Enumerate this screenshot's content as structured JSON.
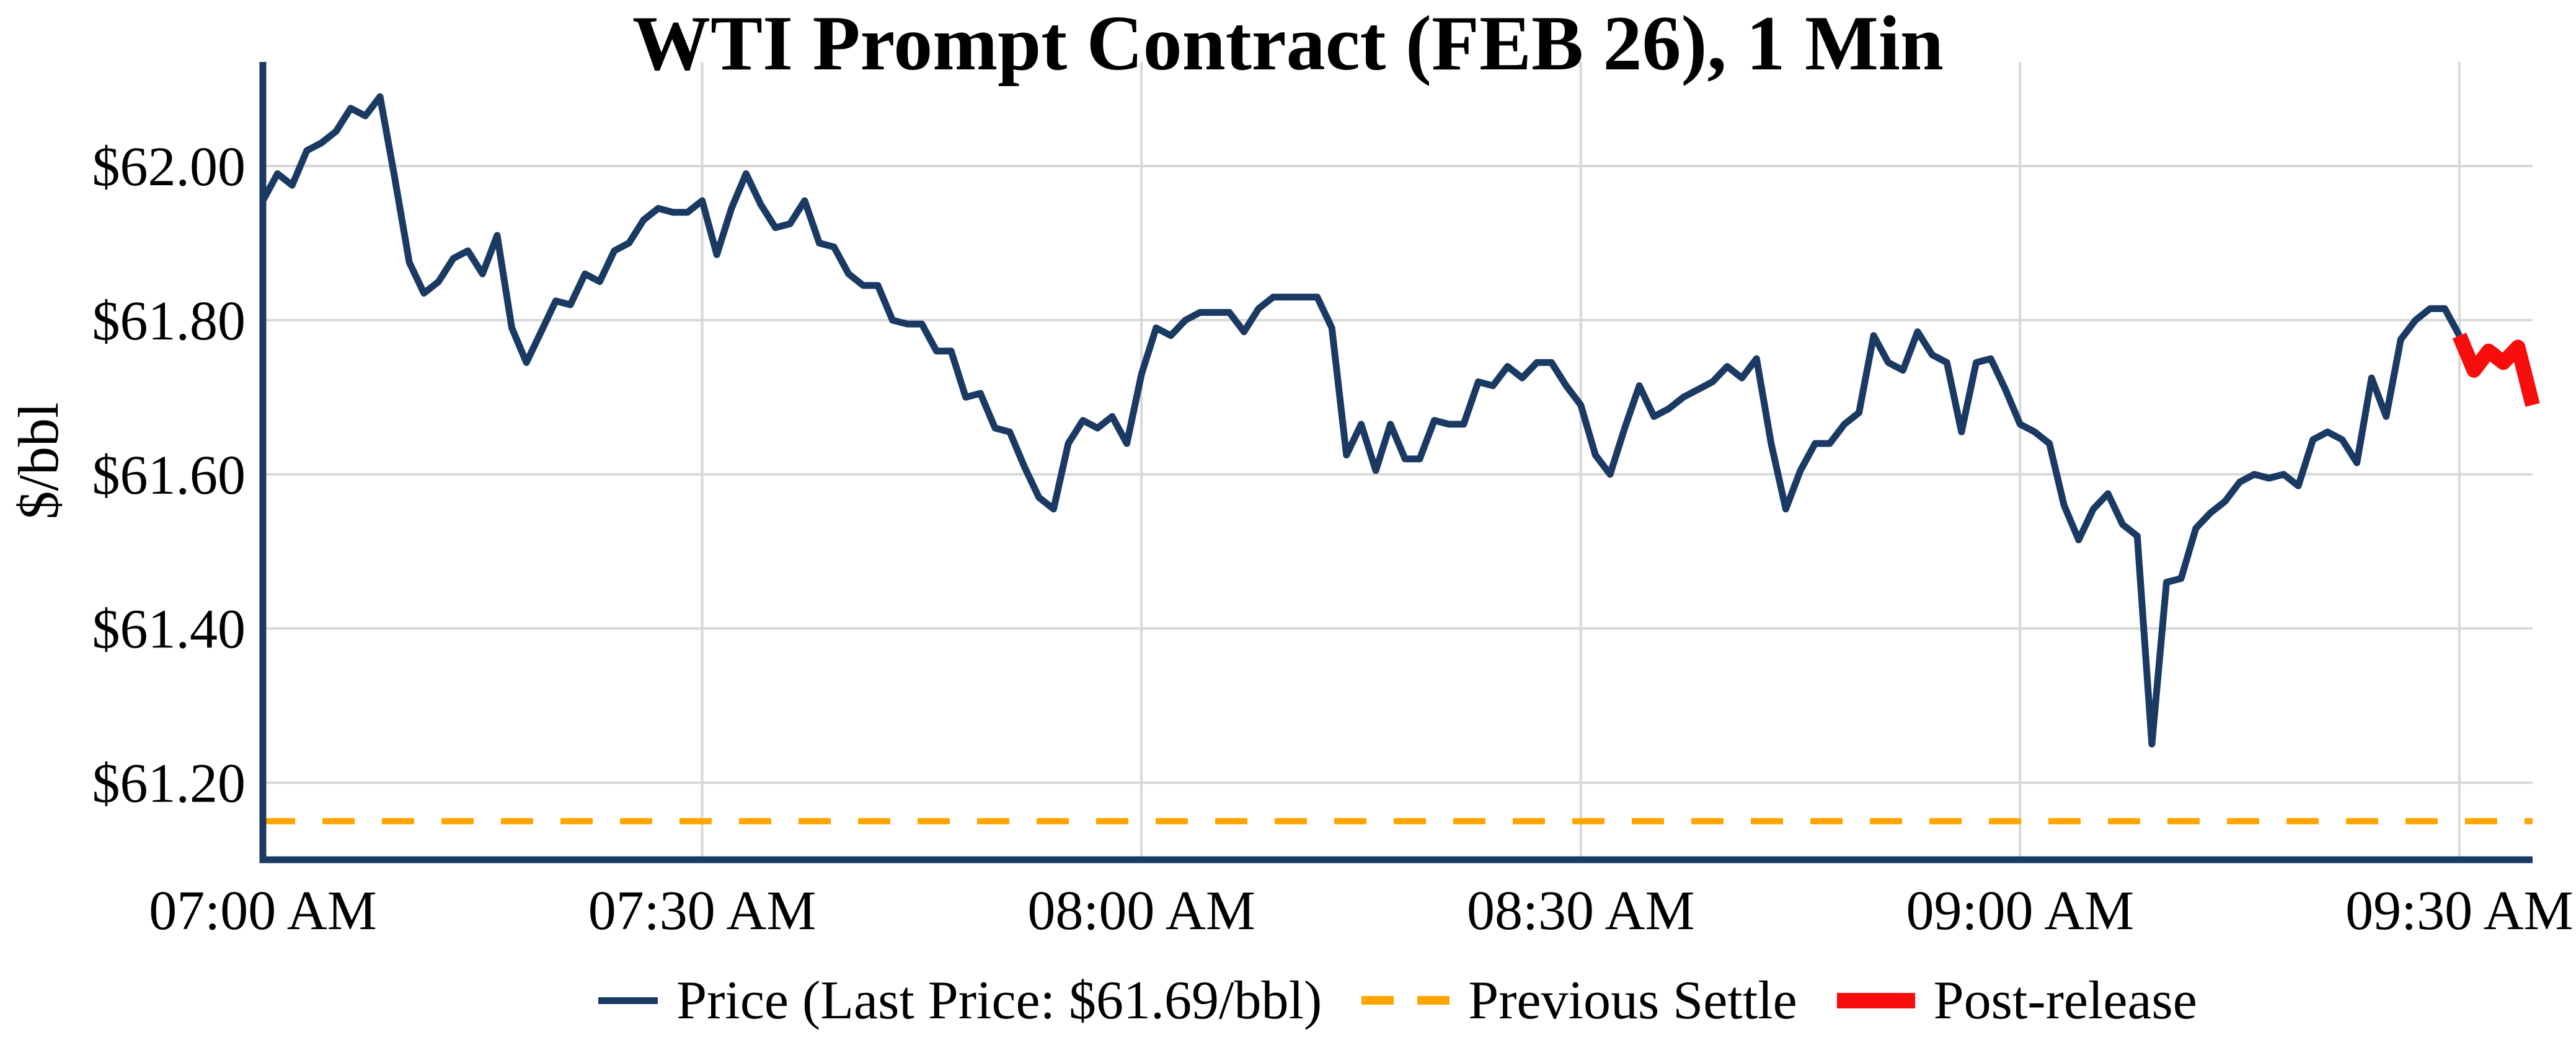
{
  "title": "WTI Prompt Contract (FEB 26), 1 Min",
  "y_axis_label": "$/bbl",
  "last_price_label": "$61.69/bbl",
  "colors": {
    "price_line": "#1a3a64",
    "previous_settle_line": "#ffa500",
    "post_release_line": "#f80d0d",
    "gridline": "#d8d8d8",
    "axis_spine": "#1a3a64",
    "text": "#000000",
    "background": "#ffffff"
  },
  "legend": {
    "items": [
      {
        "name": "price",
        "label": "Price (Last Price: $61.69/bbl)",
        "swatch": "solid-line"
      },
      {
        "name": "previous-settle",
        "label": "Previous Settle",
        "swatch": "dashed-line"
      },
      {
        "name": "post-release",
        "label": "Post-release",
        "swatch": "thick-line"
      }
    ]
  },
  "chart_data": {
    "type": "line",
    "title": "WTI Prompt Contract (FEB 26), 1 Min",
    "xlabel": "",
    "ylabel": "$/bbl",
    "grid": true,
    "legend_position": "bottom-center",
    "start_time": "07:00 AM",
    "interval_minutes": 1,
    "xlim_minutes": [
      0,
      155
    ],
    "ylim": [
      61.1,
      62.135
    ],
    "x_ticks": {
      "minutes": [
        0,
        30,
        60,
        90,
        120,
        150
      ],
      "labels": [
        "07:00 AM",
        "07:30 AM",
        "08:00 AM",
        "08:30 AM",
        "09:00 AM",
        "09:30 AM"
      ]
    },
    "y_ticks": {
      "values": [
        62.0,
        61.8,
        61.6,
        61.4,
        61.2
      ],
      "labels": [
        "$62.00",
        "$61.80",
        "$61.60",
        "$61.40",
        "$61.20"
      ]
    },
    "series": [
      {
        "name": "Price (Last Price: $61.69/bbl)",
        "color": "#1a3a64",
        "stroke_width": 11,
        "start_minute": 0,
        "values": [
          61.955,
          61.99,
          61.975,
          62.02,
          62.03,
          62.045,
          62.075,
          62.065,
          62.09,
          61.985,
          61.875,
          61.835,
          61.85,
          61.88,
          61.89,
          61.86,
          61.91,
          61.79,
          61.745,
          61.785,
          61.825,
          61.82,
          61.86,
          61.85,
          61.89,
          61.9,
          61.93,
          61.945,
          61.94,
          61.94,
          61.955,
          61.885,
          61.945,
          61.99,
          61.95,
          61.92,
          61.925,
          61.955,
          61.9,
          61.895,
          61.86,
          61.845,
          61.845,
          61.8,
          61.795,
          61.795,
          61.76,
          61.76,
          61.7,
          61.705,
          61.66,
          61.655,
          61.61,
          61.57,
          61.555,
          61.64,
          61.67,
          61.66,
          61.675,
          61.64,
          61.73,
          61.79,
          61.78,
          61.8,
          61.81,
          61.81,
          61.81,
          61.785,
          61.815,
          61.83,
          61.83,
          61.83,
          61.83,
          61.79,
          61.625,
          61.665,
          61.605,
          61.665,
          61.62,
          61.62,
          61.67,
          61.665,
          61.665,
          61.72,
          61.715,
          61.74,
          61.725,
          61.745,
          61.745,
          61.715,
          61.69,
          61.625,
          61.6,
          61.66,
          61.715,
          61.675,
          61.685,
          61.7,
          61.71,
          61.72,
          61.74,
          61.725,
          61.75,
          61.64,
          61.555,
          61.605,
          61.64,
          61.64,
          61.665,
          61.68,
          61.78,
          61.745,
          61.735,
          61.785,
          61.755,
          61.745,
          61.655,
          61.745,
          61.75,
          61.71,
          61.665,
          61.655,
          61.64,
          61.56,
          61.515,
          61.555,
          61.575,
          61.535,
          61.52,
          61.25,
          61.46,
          61.465,
          61.53,
          61.55,
          61.565,
          61.59,
          61.6,
          61.595,
          61.6,
          61.585,
          61.645,
          61.655,
          61.645,
          61.615,
          61.725,
          61.675,
          61.775,
          61.8,
          61.815,
          61.815,
          61.78
        ]
      },
      {
        "name": "Post-release",
        "color": "#f80d0d",
        "stroke_width": 24,
        "start_minute": 150,
        "values": [
          61.78,
          61.735,
          61.76,
          61.745,
          61.765,
          61.69
        ]
      },
      {
        "name": "Previous Settle",
        "color": "#ffa500",
        "style": "dashed",
        "stroke_width": 10,
        "value": 61.15
      }
    ]
  }
}
